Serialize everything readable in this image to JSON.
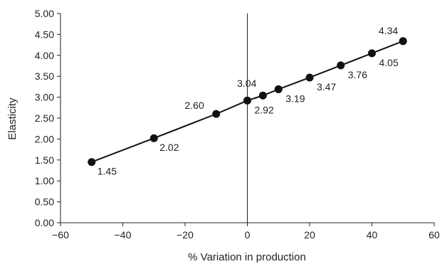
{
  "chart_data": {
    "type": "line",
    "title": "",
    "xlabel": "% Variation in production",
    "ylabel": "Elasticity",
    "xlim": [
      -60,
      60
    ],
    "ylim": [
      0,
      5
    ],
    "x_ticks": [
      -60,
      -40,
      -20,
      0,
      20,
      40,
      60
    ],
    "x_tick_labels": [
      "−60",
      "−40",
      "−20",
      "0",
      "20",
      "40",
      "60"
    ],
    "y_ticks": [
      0,
      0.5,
      1,
      1.5,
      2,
      2.5,
      3,
      3.5,
      4,
      4.5,
      5
    ],
    "y_tick_labels": [
      "0.00",
      "0.50",
      "1.00",
      "1.50",
      "2.00",
      "2.50",
      "3.00",
      "3.50",
      "4.00",
      "4.50",
      "5.00"
    ],
    "grid": false,
    "legend": "none",
    "vertical_reference_line_at_x": 0,
    "colors": {
      "line": "#111111",
      "marker": "#111111",
      "axis": "#222222"
    },
    "series": [
      {
        "x": [
          -50,
          -30,
          -10,
          0,
          5,
          10,
          20,
          30,
          40,
          50
        ],
        "y": [
          1.45,
          2.02,
          2.6,
          2.92,
          3.04,
          3.19,
          3.47,
          3.76,
          4.05,
          4.34
        ],
        "labels": [
          "1.45",
          "2.02",
          "2.60",
          "2.92",
          "3.04",
          "3.19",
          "3.47",
          "3.76",
          "4.05",
          "4.34"
        ]
      }
    ]
  }
}
